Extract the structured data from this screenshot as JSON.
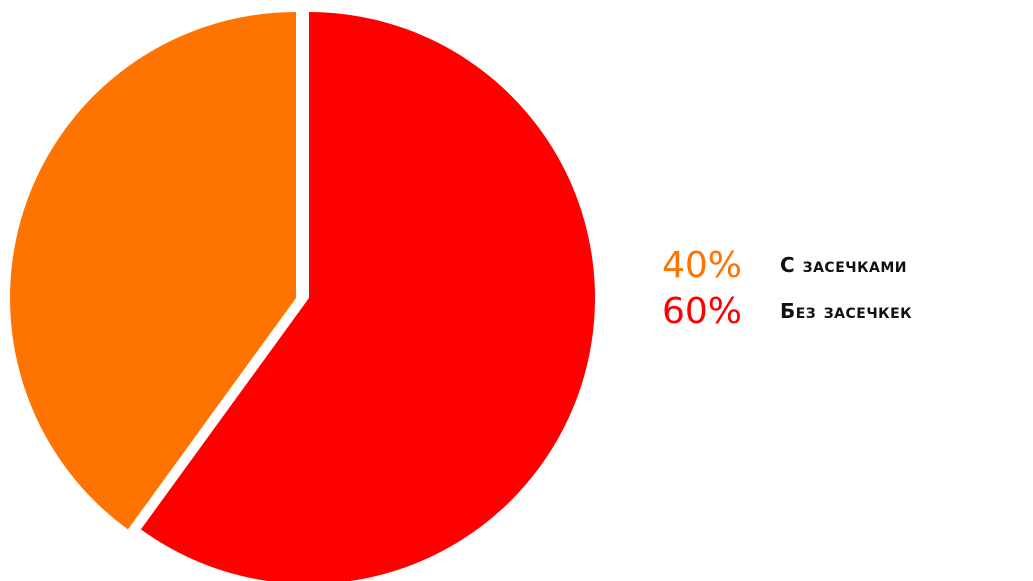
{
  "chart_data": {
    "type": "pie",
    "title": "",
    "legend_position": "right",
    "slices": [
      {
        "label": "С засечками",
        "value": 40,
        "value_label": "40%",
        "color": "#ff7300"
      },
      {
        "label": "Без засечкек",
        "value": 60,
        "value_label": "60%",
        "color": "#ff0000"
      }
    ]
  }
}
